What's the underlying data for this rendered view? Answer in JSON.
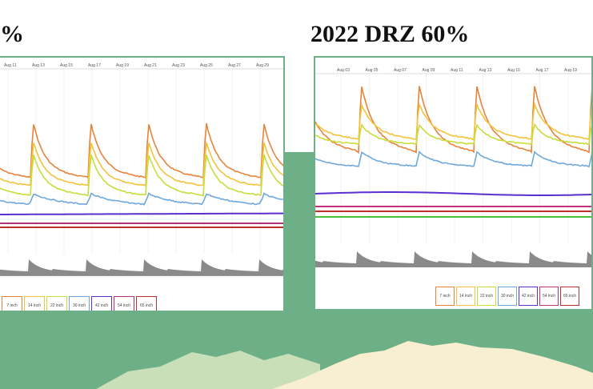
{
  "chart_data": [
    {
      "type": "line",
      "title": "%",
      "x": [
        "Aug 11",
        "Aug 13",
        "Aug 15",
        "Aug 17",
        "Aug 19",
        "Aug 21",
        "Aug 23",
        "Aug 25",
        "Aug 27",
        "Aug 29"
      ],
      "series_order": [
        "7 inch",
        "14 inch",
        "22 inch",
        "30 inch",
        "42 inch",
        "54 inch",
        "65 inch"
      ],
      "series": [
        {
          "name": "7 inch",
          "color": "#e8833a"
        },
        {
          "name": "14 inch",
          "color": "#f2c33b"
        },
        {
          "name": "22 inch",
          "color": "#c8dd3a"
        },
        {
          "name": "30 inch",
          "color": "#6fa8dc"
        },
        {
          "name": "42 inch",
          "color": "#5b2fd0"
        },
        {
          "name": "54 inch",
          "color": "#b0327a"
        },
        {
          "name": "65 inch",
          "color": "#c0302e"
        }
      ]
    },
    {
      "type": "line",
      "title": "2022 DRZ 60%",
      "x": [
        "Aug 03",
        "Aug 05",
        "Aug 07",
        "Aug 09",
        "Aug 11",
        "Aug 13",
        "Aug 15",
        "Aug 17",
        "Aug 19"
      ],
      "series": [
        {
          "name": "7 inch",
          "color": "#e8833a"
        },
        {
          "name": "14 inch",
          "color": "#f2c33b"
        },
        {
          "name": "22 inch",
          "color": "#c8dd3a"
        },
        {
          "name": "30 inch",
          "color": "#6fa8dc"
        },
        {
          "name": "42 inch",
          "color": "#5b2fd0"
        },
        {
          "name": "54 inch",
          "color": "#c0327a"
        },
        {
          "name": "65 inch",
          "color": "#c0302e"
        }
      ]
    }
  ],
  "colors": {
    "green": "#6db087",
    "light_green": "#c9dfb8",
    "cream": "#f7efcf",
    "rain": "#8a8a8a",
    "extra_green_line": "#4cbf3a"
  }
}
